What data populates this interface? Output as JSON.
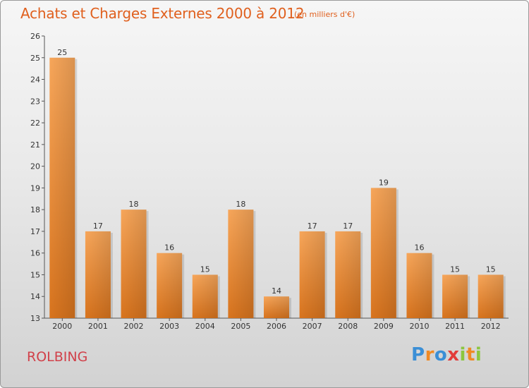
{
  "chart_data": {
    "type": "bar",
    "title": "Achats et Charges Externes 2000 à 2012",
    "subtitle": "(en milliers d'€)",
    "xlabel": "",
    "ylabel": "",
    "categories": [
      "2000",
      "2001",
      "2002",
      "2003",
      "2004",
      "2005",
      "2006",
      "2007",
      "2008",
      "2009",
      "2010",
      "2011",
      "2012"
    ],
    "values": [
      25,
      17,
      18,
      16,
      15,
      18,
      14,
      17,
      17,
      19,
      16,
      15,
      15
    ],
    "ylim": [
      13,
      26
    ],
    "yticks": [
      13,
      14,
      15,
      16,
      17,
      18,
      19,
      20,
      21,
      22,
      23,
      24,
      25,
      26
    ],
    "grid": false,
    "legend": "none",
    "bar_color": "#f5a04d"
  },
  "footer": {
    "commune": "ROLBING",
    "brand_letters": [
      {
        "ch": "P",
        "color": "#3b8fd6"
      },
      {
        "ch": "r",
        "color": "#f08a24"
      },
      {
        "ch": "o",
        "color": "#3b8fd6"
      },
      {
        "ch": "x",
        "color": "#e23b3b"
      },
      {
        "ch": "i",
        "color": "#8cc63f"
      },
      {
        "ch": "t",
        "color": "#f08a24"
      },
      {
        "ch": "i",
        "color": "#8cc63f"
      }
    ]
  }
}
